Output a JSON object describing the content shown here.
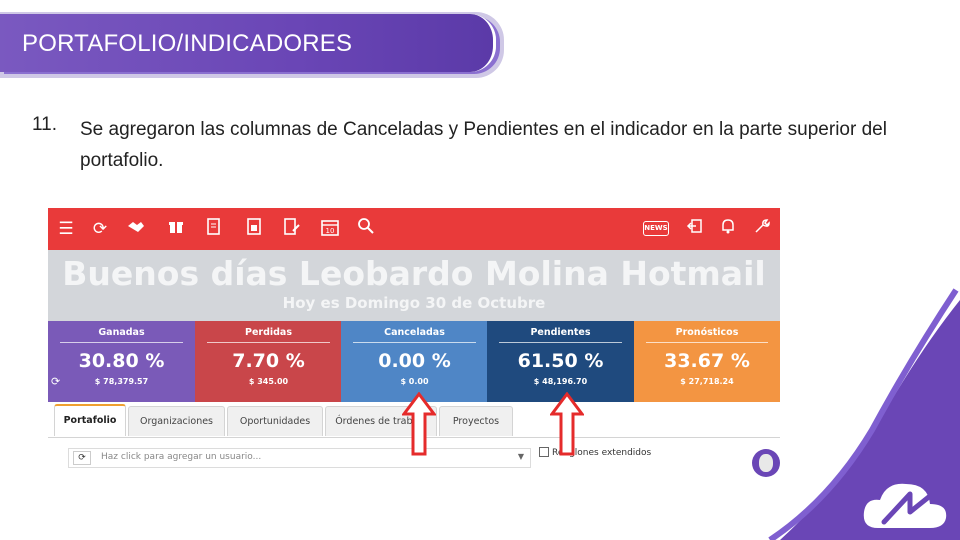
{
  "slide": {
    "title": "PORTAFOLIO/INDICADORES",
    "item_number": "11.",
    "item_text": "Se agregaron las columnas de Canceladas y Pendientes en el indicador en la parte superior del portafolio."
  },
  "app": {
    "toolbar_left_icons": [
      "menu-icon",
      "refresh-icon",
      "handshake-icon",
      "gift-icon",
      "document-icon",
      "calculator-document-icon",
      "document-pencil-icon",
      "calendar-icon",
      "search-icon"
    ],
    "calendar_day": "10",
    "news_badge": "NEWS",
    "toolbar_right_icons": [
      "news-icon",
      "logout-icon",
      "bell-icon",
      "wrench-icon"
    ],
    "greeting": "Buenos días Leobardo Molina Hotmail",
    "date_line": "Hoy es Domingo 30 de Octubre",
    "indicators": [
      {
        "label": "Ganadas",
        "percent": "30.80 %",
        "amount": "$ 78,379.57",
        "color": "#7a5ab8"
      },
      {
        "label": "Perdidas",
        "percent": "7.70 %",
        "amount": "$ 345.00",
        "color": "#c9464a"
      },
      {
        "label": "Canceladas",
        "percent": "0.00 %",
        "amount": "$ 0.00",
        "color": "#4f86c6"
      },
      {
        "label": "Pendientes",
        "percent": "61.50 %",
        "amount": "$ 48,196.70",
        "color": "#1f4a7e"
      },
      {
        "label": "Pronósticos",
        "percent": "33.67 %",
        "amount": "$ 27,718.24",
        "color": "#f39542"
      }
    ],
    "tabs": [
      {
        "label": "Portafolio",
        "active": true
      },
      {
        "label": "Organizaciones",
        "active": false
      },
      {
        "label": "Oportunidades",
        "active": false
      },
      {
        "label": "Órdenes de trabajo",
        "active": false
      },
      {
        "label": "Proyectos",
        "active": false
      }
    ],
    "user_placeholder": "Haz click para agregar un usuario...",
    "extended_rows_label": "Renglones extendidos"
  },
  "colors": {
    "banner": "#6a46b6",
    "topbar": "#e93a3a",
    "greeting_bg": "#d3d6da",
    "arrow": "#e52b2b"
  }
}
